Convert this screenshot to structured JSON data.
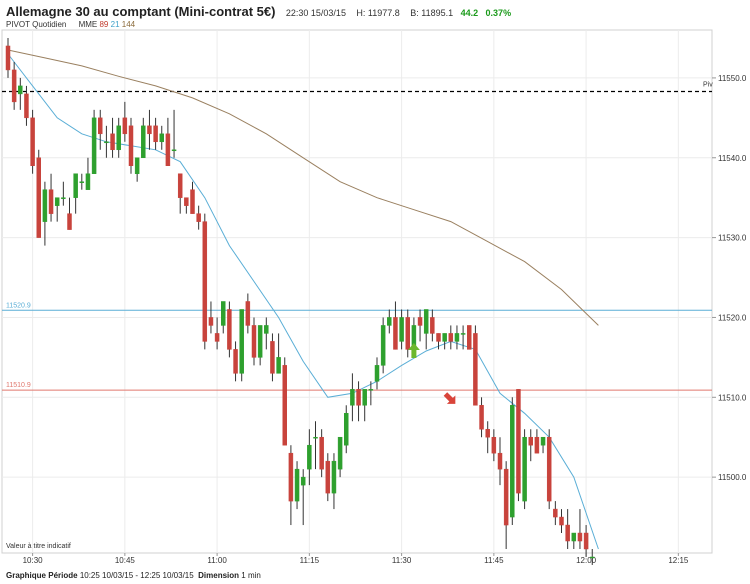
{
  "header": {
    "title": "Allemagne 30 au comptant (Mini-contrat 5€)",
    "time": "22:30 15/03/15",
    "high": "H: 11977.8",
    "low": "B: 11895.1",
    "change": "44.2",
    "change_pct": "0.37%"
  },
  "indicators": {
    "pivot_label": "PIVOT",
    "pivot_period": "Quotidien",
    "mme_label": "MME",
    "mme_1": "89",
    "mme_2": "21",
    "mme_3": "144"
  },
  "footer": {
    "period_label": "Graphique Période",
    "period_value": "10:25 10/03/15 - 12:25 10/03/15",
    "dimension_label": "Dimension",
    "dimension_value": "1 min"
  },
  "colors": {
    "up": "#2ea02e",
    "down": "#c8433c",
    "ema21": "#5aaed6",
    "ema144": "#9a8060",
    "pivot": "#000000",
    "level_blue": "#5aaed6",
    "level_red": "#e0786e",
    "arrow_up": "#6cb82e",
    "arrow_down": "#d9443a"
  },
  "chart_data": {
    "type": "candlestick",
    "ylim": [
      11490.5,
      11556
    ],
    "y_ticks": [
      "11550.0",
      "11540.0",
      "11530.0",
      "11520.0",
      "11510.0",
      "11500.0"
    ],
    "x_ticks": [
      "10:30",
      "10:45",
      "11:00",
      "11:15",
      "11:30",
      "11:45",
      "12:00",
      "12:15"
    ],
    "bottom_note": "Valeur à titre indicatif",
    "pivot": {
      "label": "Piv",
      "value": 11548.3
    },
    "levels": [
      {
        "label": "11520.9",
        "value": 11520.9,
        "color": "#5aaed6"
      },
      {
        "label": "11510.9",
        "value": 11510.9,
        "color": "#e0786e"
      }
    ],
    "candles": [
      [
        11554,
        11555,
        11550,
        11551
      ],
      [
        11551,
        11552,
        11546,
        11547
      ],
      [
        11548,
        11550,
        11546,
        11549
      ],
      [
        11548,
        11549,
        11544,
        11545
      ],
      [
        11545,
        11546,
        11538,
        11539
      ],
      [
        11540,
        11541,
        11530,
        11530
      ],
      [
        11532,
        11537,
        11529,
        11536
      ],
      [
        11536,
        11538,
        11532,
        11533
      ],
      [
        11534,
        11535,
        11532,
        11535
      ],
      [
        11535,
        11537,
        11534,
        11535
      ],
      [
        11533,
        11535,
        11531,
        11531
      ],
      [
        11535,
        11538,
        11533,
        11538
      ],
      [
        11537,
        11538,
        11536,
        11537
      ],
      [
        11536,
        11540,
        11536,
        11538
      ],
      [
        11538,
        11546,
        11538,
        11545
      ],
      [
        11545,
        11546,
        11541,
        11543
      ],
      [
        11542,
        11544,
        11540,
        11542
      ],
      [
        11543,
        11545,
        11540,
        11541
      ],
      [
        11541,
        11545,
        11540,
        11544
      ],
      [
        11545,
        11547,
        11542,
        11543
      ],
      [
        11544,
        11545,
        11538,
        11539
      ],
      [
        11538,
        11540,
        11537,
        11540
      ],
      [
        11540,
        11545,
        11540,
        11544
      ],
      [
        11544,
        11546,
        11541,
        11543
      ],
      [
        11544,
        11545,
        11541,
        11542
      ],
      [
        11542,
        11544,
        11541,
        11543
      ],
      [
        11543,
        11545,
        11539,
        11539
      ],
      [
        11541,
        11546,
        11540,
        11541
      ],
      [
        11538,
        11538,
        11533,
        11535
      ],
      [
        11535,
        11535,
        11533,
        11534
      ],
      [
        11536,
        11537,
        11533,
        11533
      ],
      [
        11533,
        11534,
        11531,
        11532
      ],
      [
        11532,
        11533,
        11516,
        11517
      ],
      [
        11520,
        11522,
        11518,
        11519
      ],
      [
        11518,
        11520,
        11516,
        11517
      ],
      [
        11519,
        11522,
        11518,
        11522
      ],
      [
        11521,
        11522,
        11515,
        11516
      ],
      [
        11516,
        11517,
        11512,
        11513
      ],
      [
        11513,
        11521,
        11512,
        11521
      ],
      [
        11522,
        11523,
        11518,
        11519
      ],
      [
        11519,
        11520,
        11514,
        11515
      ],
      [
        11515,
        11519,
        11514,
        11519
      ],
      [
        11518,
        11520,
        11516,
        11519
      ],
      [
        11517,
        11518,
        11512,
        11513
      ],
      [
        11513,
        11518,
        11513,
        11515
      ],
      [
        11514,
        11515,
        11504,
        11504
      ],
      [
        11503,
        11504,
        11494,
        11497
      ],
      [
        11497,
        11502,
        11496,
        11501
      ],
      [
        11499,
        11501,
        11494,
        11500
      ],
      [
        11501,
        11506,
        11499,
        11504
      ],
      [
        11505,
        11507,
        11501,
        11505
      ],
      [
        11505,
        11506,
        11500,
        11501
      ],
      [
        11502,
        11503,
        11497,
        11498
      ],
      [
        11498,
        11503,
        11496,
        11502
      ],
      [
        11501,
        11505,
        11500,
        11505
      ],
      [
        11504,
        11509,
        11503,
        11508
      ],
      [
        11509,
        11513,
        11507,
        11511
      ],
      [
        11511,
        11512,
        11507,
        11509
      ],
      [
        11509,
        11511,
        11507,
        11511
      ],
      [
        11511,
        11512,
        11509,
        11511
      ],
      [
        11512,
        11515,
        11511,
        11514
      ],
      [
        11514,
        11520,
        11513,
        11519
      ],
      [
        11519,
        11521,
        11518,
        11520
      ],
      [
        11520,
        11522,
        11516,
        11516
      ],
      [
        11517,
        11521,
        11516,
        11520
      ],
      [
        11520,
        11521,
        11515,
        11516
      ],
      [
        11516,
        11520,
        11515,
        11519
      ],
      [
        11520,
        11521,
        11517,
        11519
      ],
      [
        11518,
        11521,
        11516,
        11521
      ],
      [
        11520,
        11521,
        11517,
        11518
      ],
      [
        11518,
        11518,
        11516,
        11517
      ],
      [
        11517,
        11518,
        11516,
        11518
      ],
      [
        11518,
        11519,
        11516,
        11517
      ],
      [
        11517,
        11519,
        11516,
        11518
      ],
      [
        11518,
        11519,
        11516,
        11518
      ],
      [
        11519,
        11519,
        11516,
        11516
      ],
      [
        11518,
        11519,
        11509,
        11509
      ],
      [
        11509,
        11510,
        11505,
        11506
      ],
      [
        11506,
        11507,
        11503,
        11505
      ],
      [
        11505,
        11506,
        11502,
        11503
      ],
      [
        11503,
        11505,
        11499,
        11501
      ],
      [
        11501,
        11502,
        11491,
        11494
      ],
      [
        11495,
        11510,
        11494,
        11509
      ],
      [
        11511,
        11511,
        11497,
        11498
      ],
      [
        11497,
        11506,
        11496,
        11505
      ],
      [
        11505,
        11506,
        11502,
        11504
      ],
      [
        11505,
        11506,
        11503,
        11503
      ],
      [
        11504,
        11505,
        11503,
        11505
      ],
      [
        11505,
        11506,
        11496,
        11497
      ],
      [
        11496,
        11497,
        11494,
        11495
      ],
      [
        11495,
        11496,
        11493,
        11494
      ],
      [
        11494,
        11496,
        11491,
        11492
      ],
      [
        11492,
        11493,
        11491,
        11493
      ],
      [
        11493,
        11496,
        11491,
        11492
      ],
      [
        11493,
        11494,
        11490,
        11491
      ],
      [
        11490,
        11491,
        11489,
        11490
      ]
    ],
    "ema21": [
      [
        0,
        11553
      ],
      [
        4,
        11549
      ],
      [
        8,
        11545
      ],
      [
        12,
        11543
      ],
      [
        16,
        11542
      ],
      [
        20,
        11541.5
      ],
      [
        24,
        11541
      ],
      [
        28,
        11539.5
      ],
      [
        32,
        11535
      ],
      [
        36,
        11529
      ],
      [
        40,
        11524.5
      ],
      [
        44,
        11520
      ],
      [
        48,
        11514.5
      ],
      [
        52,
        11510
      ],
      [
        56,
        11510.5
      ],
      [
        60,
        11512
      ],
      [
        64,
        11514
      ],
      [
        68,
        11515.8
      ],
      [
        72,
        11517
      ],
      [
        76,
        11516
      ],
      [
        80,
        11510.5
      ],
      [
        84,
        11508
      ],
      [
        88,
        11505
      ],
      [
        92,
        11500
      ],
      [
        96,
        11491
      ]
    ],
    "ema144": [
      [
        0,
        11553.5
      ],
      [
        6,
        11552.5
      ],
      [
        12,
        11551.5
      ],
      [
        18,
        11550.2
      ],
      [
        24,
        11549
      ],
      [
        30,
        11547.5
      ],
      [
        36,
        11545.5
      ],
      [
        42,
        11543
      ],
      [
        48,
        11540
      ],
      [
        54,
        11537
      ],
      [
        60,
        11535
      ],
      [
        66,
        11533.5
      ],
      [
        72,
        11532
      ],
      [
        78,
        11529.5
      ],
      [
        84,
        11527
      ],
      [
        90,
        11523.5
      ],
      [
        96,
        11519
      ]
    ],
    "arrows": [
      {
        "type": "up",
        "index": 66,
        "value": 11515.8
      },
      {
        "type": "down",
        "index": 74,
        "value": 11509.2
      }
    ]
  }
}
